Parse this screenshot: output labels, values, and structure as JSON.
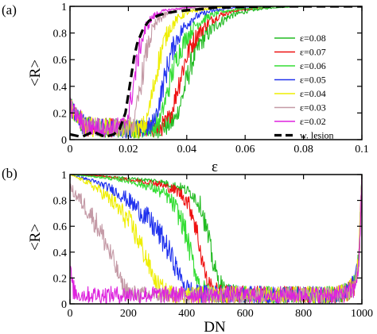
{
  "chart_data": [
    {
      "type": "line",
      "panel_label": "(a)",
      "xlabel": "ε",
      "ylabel": "<R>",
      "xlim": [
        0,
        0.1
      ],
      "ylim": [
        0,
        1
      ],
      "xticks": [
        0,
        0.02,
        0.04,
        0.06,
        0.08,
        0.1
      ],
      "xtick_labels": [
        "0",
        "0.02",
        "0.04",
        "0.06",
        "0.08",
        "0.1"
      ],
      "yticks": [
        0,
        0.2,
        0.4,
        0.6,
        0.8,
        1
      ],
      "ytick_labels": [
        "0",
        "0.2",
        "0.4",
        "0.6",
        "0.8",
        "1"
      ],
      "grid": false,
      "legend_position": "right",
      "series": [
        {
          "name": "ε=0.08",
          "color": "#22bb22",
          "dash": "solid",
          "x": [
            0,
            0.005,
            0.01,
            0.015,
            0.02,
            0.025,
            0.03,
            0.033,
            0.036,
            0.038,
            0.04,
            0.042,
            0.045,
            0.05,
            0.055,
            0.06,
            0.065,
            0.07,
            0.08,
            0.09,
            0.1
          ],
          "y": [
            0.25,
            0.1,
            0.09,
            0.09,
            0.08,
            0.08,
            0.08,
            0.1,
            0.15,
            0.28,
            0.45,
            0.6,
            0.74,
            0.86,
            0.93,
            0.96,
            0.98,
            0.99,
            1,
            1,
            1
          ]
        },
        {
          "name": "ε=0.07",
          "color": "#ee1111",
          "dash": "solid",
          "x": [
            0,
            0.005,
            0.01,
            0.015,
            0.02,
            0.025,
            0.03,
            0.033,
            0.035,
            0.037,
            0.039,
            0.041,
            0.044,
            0.048,
            0.052,
            0.057,
            0.065,
            0.07,
            0.08,
            0.09,
            0.1
          ],
          "y": [
            0.25,
            0.1,
            0.09,
            0.09,
            0.08,
            0.08,
            0.08,
            0.12,
            0.22,
            0.4,
            0.56,
            0.69,
            0.8,
            0.89,
            0.94,
            0.97,
            0.99,
            1,
            1,
            1,
            1
          ]
        },
        {
          "name": "ε=0.06",
          "color": "#33dd33",
          "dash": "solid",
          "x": [
            0,
            0.005,
            0.01,
            0.015,
            0.02,
            0.025,
            0.029,
            0.031,
            0.033,
            0.035,
            0.037,
            0.04,
            0.043,
            0.047,
            0.052,
            0.058,
            0.065,
            0.07,
            0.08,
            0.09,
            0.1
          ],
          "y": [
            0.25,
            0.1,
            0.09,
            0.09,
            0.08,
            0.08,
            0.09,
            0.16,
            0.32,
            0.5,
            0.64,
            0.77,
            0.86,
            0.92,
            0.96,
            0.98,
            0.99,
            1,
            1,
            1,
            1
          ]
        },
        {
          "name": "ε=0.05",
          "color": "#2233ee",
          "dash": "solid",
          "x": [
            0,
            0.005,
            0.01,
            0.015,
            0.02,
            0.025,
            0.028,
            0.03,
            0.032,
            0.034,
            0.036,
            0.039,
            0.042,
            0.046,
            0.05,
            0.056,
            0.065,
            0.07,
            0.08,
            0.09,
            0.1
          ],
          "y": [
            0.25,
            0.1,
            0.09,
            0.09,
            0.08,
            0.08,
            0.1,
            0.22,
            0.42,
            0.6,
            0.73,
            0.84,
            0.91,
            0.95,
            0.97,
            0.99,
            1,
            1,
            1,
            1,
            1
          ]
        },
        {
          "name": "ε=0.04",
          "color": "#eeee00",
          "dash": "solid",
          "x": [
            0,
            0.005,
            0.01,
            0.015,
            0.02,
            0.024,
            0.026,
            0.028,
            0.03,
            0.032,
            0.034,
            0.037,
            0.04,
            0.044,
            0.05,
            0.055,
            0.06,
            0.07,
            0.08,
            0.09,
            0.1
          ],
          "y": [
            0.25,
            0.1,
            0.09,
            0.09,
            0.08,
            0.08,
            0.12,
            0.32,
            0.55,
            0.72,
            0.83,
            0.91,
            0.95,
            0.97,
            0.99,
            1,
            1,
            1,
            1,
            1,
            1
          ]
        },
        {
          "name": "ε=0.03",
          "color": "#c49aa6",
          "dash": "solid",
          "x": [
            0,
            0.005,
            0.01,
            0.015,
            0.02,
            0.022,
            0.024,
            0.026,
            0.028,
            0.03,
            0.033,
            0.036,
            0.04,
            0.045,
            0.05,
            0.055,
            0.06,
            0.07,
            0.08,
            0.09,
            0.1
          ],
          "y": [
            0.25,
            0.1,
            0.09,
            0.09,
            0.09,
            0.13,
            0.38,
            0.64,
            0.8,
            0.89,
            0.94,
            0.97,
            0.98,
            0.99,
            1,
            1,
            1,
            1,
            1,
            1,
            1
          ]
        },
        {
          "name": "ε=0.02",
          "color": "#dd22dd",
          "dash": "solid",
          "x": [
            0,
            0.005,
            0.01,
            0.015,
            0.018,
            0.02,
            0.022,
            0.024,
            0.026,
            0.028,
            0.03,
            0.033,
            0.036,
            0.04,
            0.045,
            0.05,
            0.06,
            0.07,
            0.08,
            0.09,
            0.1
          ],
          "y": [
            0.25,
            0.1,
            0.09,
            0.09,
            0.1,
            0.18,
            0.45,
            0.7,
            0.84,
            0.91,
            0.95,
            0.97,
            0.98,
            0.99,
            1,
            1,
            1,
            1,
            1,
            1,
            1
          ]
        },
        {
          "name": "w. lesion",
          "color": "#000000",
          "dash": "dashed",
          "x": [
            0,
            0.004,
            0.008,
            0.012,
            0.015,
            0.017,
            0.019,
            0.02,
            0.021,
            0.022,
            0.023,
            0.025,
            0.027,
            0.03,
            0.033,
            0.036,
            0.04,
            0.045,
            0.05,
            0.06,
            0.07,
            0.08,
            0.09,
            0.1
          ],
          "y": [
            0.04,
            0.02,
            0.06,
            0.02,
            0.04,
            0.08,
            0.2,
            0.34,
            0.48,
            0.62,
            0.72,
            0.83,
            0.89,
            0.93,
            0.95,
            0.96,
            0.97,
            0.98,
            0.99,
            0.995,
            1,
            1,
            1,
            1
          ]
        }
      ]
    },
    {
      "type": "line",
      "panel_label": "(b)",
      "xlabel": "DN",
      "ylabel": "<R>",
      "xlim": [
        0,
        1000
      ],
      "ylim": [
        0,
        1
      ],
      "xticks": [
        0,
        200,
        400,
        600,
        800,
        1000
      ],
      "xtick_labels": [
        "0",
        "200",
        "400",
        "600",
        "800",
        "1000"
      ],
      "yticks": [
        0,
        0.2,
        0.4,
        0.6,
        0.8,
        1
      ],
      "ytick_labels": [
        "0",
        "0.2",
        "0.4",
        "0.6",
        "0.8",
        "1"
      ],
      "grid": false,
      "series": [
        {
          "color": "#22bb22",
          "x": [
            0,
            100,
            200,
            300,
            380,
            420,
            450,
            470,
            490,
            510,
            530,
            560,
            700,
            900,
            950,
            975,
            990,
            1000
          ],
          "y": [
            1,
            0.99,
            0.97,
            0.95,
            0.9,
            0.85,
            0.75,
            0.55,
            0.32,
            0.17,
            0.09,
            0.08,
            0.07,
            0.07,
            0.09,
            0.15,
            0.35,
            1
          ]
        },
        {
          "color": "#ee1111",
          "x": [
            0,
            100,
            200,
            300,
            370,
            400,
            420,
            440,
            455,
            470,
            490,
            520,
            700,
            900,
            950,
            975,
            990,
            1000
          ],
          "y": [
            1,
            0.99,
            0.96,
            0.93,
            0.87,
            0.8,
            0.7,
            0.5,
            0.32,
            0.17,
            0.1,
            0.08,
            0.07,
            0.07,
            0.09,
            0.15,
            0.35,
            1
          ]
        },
        {
          "color": "#33dd33",
          "x": [
            0,
            100,
            200,
            280,
            330,
            360,
            390,
            410,
            430,
            450,
            480,
            700,
            900,
            950,
            975,
            990,
            1000
          ],
          "y": [
            1,
            0.98,
            0.95,
            0.9,
            0.84,
            0.75,
            0.6,
            0.42,
            0.24,
            0.12,
            0.08,
            0.07,
            0.07,
            0.09,
            0.15,
            0.35,
            1
          ]
        },
        {
          "color": "#2233ee",
          "x": [
            0,
            50,
            100,
            150,
            200,
            250,
            300,
            330,
            360,
            380,
            400,
            430,
            700,
            900,
            950,
            975,
            990,
            1000
          ],
          "y": [
            1,
            0.97,
            0.93,
            0.88,
            0.8,
            0.7,
            0.56,
            0.45,
            0.3,
            0.2,
            0.12,
            0.08,
            0.07,
            0.07,
            0.09,
            0.15,
            0.35,
            1
          ]
        },
        {
          "color": "#eeee00",
          "x": [
            0,
            50,
            100,
            150,
            200,
            230,
            260,
            280,
            300,
            330,
            370,
            700,
            900,
            950,
            975,
            990,
            1000
          ],
          "y": [
            1,
            0.95,
            0.88,
            0.78,
            0.64,
            0.52,
            0.36,
            0.24,
            0.14,
            0.09,
            0.07,
            0.07,
            0.07,
            0.09,
            0.15,
            0.35,
            1
          ]
        },
        {
          "color": "#c49aa6",
          "x": [
            0,
            25,
            50,
            75,
            100,
            125,
            150,
            170,
            190,
            210,
            250,
            700,
            900,
            950,
            975,
            990,
            1000
          ],
          "y": [
            0.9,
            0.83,
            0.76,
            0.68,
            0.58,
            0.46,
            0.32,
            0.2,
            0.11,
            0.08,
            0.07,
            0.07,
            0.07,
            0.09,
            0.15,
            0.35,
            1
          ]
        },
        {
          "color": "#dd22dd",
          "x": [
            0,
            10,
            20,
            40,
            100,
            300,
            500,
            700,
            900,
            950,
            975,
            990,
            1000
          ],
          "y": [
            0.28,
            0.12,
            0.08,
            0.07,
            0.07,
            0.07,
            0.07,
            0.07,
            0.07,
            0.08,
            0.12,
            0.3,
            1
          ]
        }
      ]
    }
  ]
}
